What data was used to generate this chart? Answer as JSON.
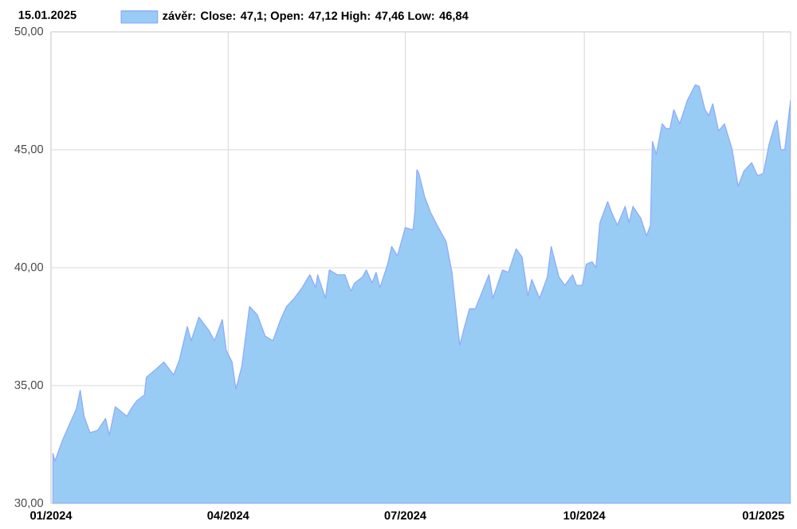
{
  "chart_data": {
    "type": "area",
    "title": "15.01.2025",
    "x": [
      "2024-01-02",
      "2024-01-03",
      "2024-01-07",
      "2024-01-11",
      "2024-01-14",
      "2024-01-16",
      "2024-01-18",
      "2024-01-21",
      "2024-01-25",
      "2024-01-29",
      "2024-01-31",
      "2024-02-03",
      "2024-02-09",
      "2024-02-11",
      "2024-02-14",
      "2024-02-18",
      "2024-02-19",
      "2024-02-24",
      "2024-02-28",
      "2024-03-04",
      "2024-03-07",
      "2024-03-11",
      "2024-03-13",
      "2024-03-17",
      "2024-03-22",
      "2024-03-25",
      "2024-03-29",
      "2024-03-31",
      "2024-04-03",
      "2024-04-05",
      "2024-04-08",
      "2024-04-12",
      "2024-04-16",
      "2024-04-20",
      "2024-04-24",
      "2024-04-28",
      "2024-05-01",
      "2024-05-05",
      "2024-05-09",
      "2024-05-13",
      "2024-05-16",
      "2024-05-17",
      "2024-05-21",
      "2024-05-23",
      "2024-05-27",
      "2024-05-31",
      "2024-06-03",
      "2024-06-05",
      "2024-06-09",
      "2024-06-11",
      "2024-06-14",
      "2024-06-16",
      "2024-06-18",
      "2024-06-22",
      "2024-06-24",
      "2024-06-27",
      "2024-07-01",
      "2024-07-05",
      "2024-07-06",
      "2024-07-07",
      "2024-07-08",
      "2024-07-11",
      "2024-07-14",
      "2024-07-18",
      "2024-07-22",
      "2024-07-25",
      "2024-07-29",
      "2024-07-31",
      "2024-08-03",
      "2024-08-06",
      "2024-08-13",
      "2024-08-15",
      "2024-08-20",
      "2024-08-23",
      "2024-08-27",
      "2024-08-30",
      "2024-09-02",
      "2024-09-04",
      "2024-09-08",
      "2024-09-12",
      "2024-09-14",
      "2024-09-18",
      "2024-09-21",
      "2024-09-25",
      "2024-09-27",
      "2024-09-30",
      "2024-10-02",
      "2024-10-05",
      "2024-10-07",
      "2024-10-09",
      "2024-10-13",
      "2024-10-15",
      "2024-10-18",
      "2024-10-22",
      "2024-10-24",
      "2024-10-26",
      "2024-10-30",
      "2024-11-02",
      "2024-11-04",
      "2024-11-05",
      "2024-11-07",
      "2024-11-10",
      "2024-11-12",
      "2024-11-14",
      "2024-11-16",
      "2024-11-19",
      "2024-11-23",
      "2024-11-27",
      "2024-11-29",
      "2024-12-02",
      "2024-12-04",
      "2024-12-06",
      "2024-12-09",
      "2024-12-12",
      "2024-12-16",
      "2024-12-19",
      "2024-12-22",
      "2024-12-26",
      "2024-12-29",
      "2025-01-01",
      "2025-01-04",
      "2025-01-07",
      "2025-01-08",
      "2025-01-10",
      "2025-01-12",
      "2025-01-15"
    ],
    "series": [
      {
        "name": "závěr: Close: 47,1; Open: 47,12 High: 47,46 Low: 46,84",
        "color": "#99ccf5",
        "values": [
          32.12,
          31.8,
          32.7,
          33.45,
          34.0,
          34.8,
          33.7,
          33.0,
          33.1,
          33.6,
          32.9,
          34.1,
          33.7,
          34.0,
          34.35,
          34.6,
          35.35,
          35.7,
          36.0,
          35.45,
          36.1,
          37.5,
          36.9,
          37.9,
          37.35,
          36.9,
          37.8,
          36.5,
          36.0,
          34.85,
          35.8,
          38.35,
          38.0,
          37.1,
          36.9,
          37.8,
          38.35,
          38.7,
          39.15,
          39.7,
          39.15,
          39.7,
          38.7,
          39.9,
          39.7,
          39.7,
          39.0,
          39.35,
          39.6,
          39.9,
          39.35,
          39.8,
          39.15,
          40.15,
          40.9,
          40.5,
          41.7,
          41.6,
          42.4,
          44.15,
          44.0,
          43.0,
          42.35,
          41.7,
          41.1,
          39.8,
          36.7,
          37.35,
          38.25,
          38.25,
          39.7,
          38.7,
          39.9,
          39.8,
          40.8,
          40.45,
          38.8,
          39.5,
          38.7,
          39.6,
          40.9,
          39.6,
          39.25,
          39.7,
          39.25,
          39.25,
          40.15,
          40.25,
          40.0,
          41.9,
          42.8,
          42.35,
          41.8,
          42.6,
          41.9,
          42.6,
          42.1,
          41.35,
          41.8,
          45.35,
          44.8,
          46.1,
          45.9,
          45.9,
          46.7,
          46.1,
          47.1,
          47.75,
          47.7,
          46.7,
          46.45,
          46.95,
          45.8,
          46.1,
          45.0,
          43.45,
          44.1,
          44.45,
          43.9,
          44.0,
          45.25,
          46.1,
          46.25,
          45.0,
          45.0,
          47.1
        ]
      }
    ],
    "xlim": [
      "2024-01-01",
      "2025-01-15"
    ],
    "xticks": [
      {
        "value": "2024-01-01",
        "label": "01/2024"
      },
      {
        "value": "2024-04-01",
        "label": "04/2024"
      },
      {
        "value": "2024-07-01",
        "label": "07/2024"
      },
      {
        "value": "2024-10-01",
        "label": "10/2024"
      },
      {
        "value": "2025-01-01",
        "label": "01/2025"
      }
    ],
    "ylim": [
      30,
      50
    ],
    "yticks": [
      {
        "value": 30,
        "label": "30,00"
      },
      {
        "value": 35,
        "label": "35,00"
      },
      {
        "value": 40,
        "label": "40,00"
      },
      {
        "value": 45,
        "label": "45,00"
      },
      {
        "value": 50,
        "label": "50,00"
      }
    ],
    "grid": true,
    "legend": "top left"
  }
}
